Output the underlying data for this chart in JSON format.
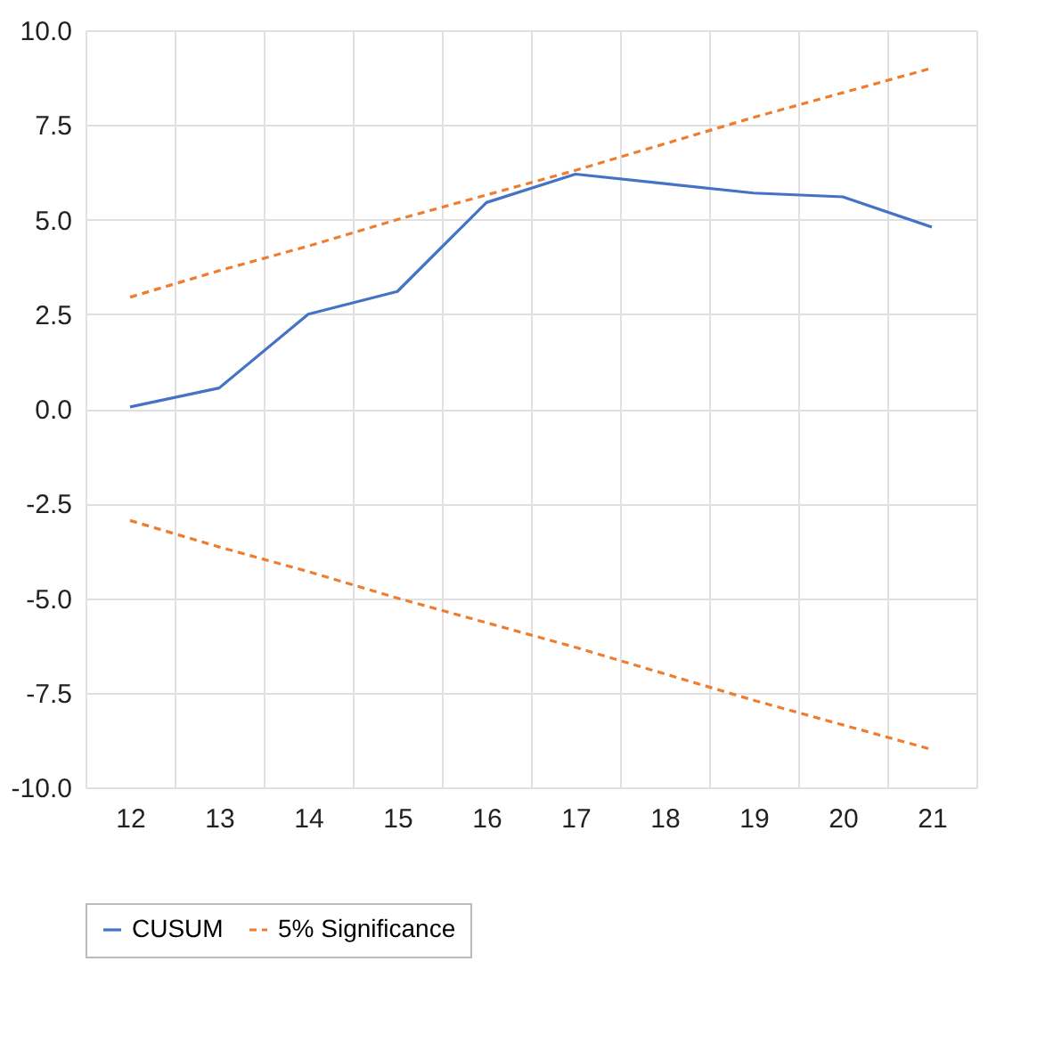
{
  "chart_data": {
    "type": "line",
    "categories": [
      "12",
      "13",
      "14",
      "15",
      "16",
      "17",
      "18",
      "19",
      "20",
      "21"
    ],
    "series": [
      {
        "name": "CUSUM",
        "color": "#4472c4",
        "line_style": "solid",
        "values": [
          0.05,
          0.55,
          2.5,
          3.1,
          5.45,
          6.2,
          5.95,
          5.7,
          5.6,
          4.8
        ]
      },
      {
        "name": "5% Significance",
        "color": "#ed7d31",
        "line_style": "dashed",
        "values": [
          2.95,
          3.65,
          4.3,
          5.0,
          5.65,
          6.3,
          7.0,
          7.7,
          8.35,
          9.0
        ]
      },
      {
        "color": "#ed7d31",
        "line_style": "dashed",
        "values": [
          -2.95,
          -3.65,
          -4.3,
          -5.0,
          -5.65,
          -6.3,
          -7.0,
          -7.7,
          -8.35,
          -9.0
        ]
      }
    ],
    "ylim": [
      -10,
      10
    ],
    "yticks": [
      {
        "value": -10,
        "label": "-10.0"
      },
      {
        "value": -7.5,
        "label": "-7.5"
      },
      {
        "value": -5,
        "label": "-5.0"
      },
      {
        "value": -2.5,
        "label": "-2.5"
      },
      {
        "value": 0,
        "label": "0.0"
      },
      {
        "value": 2.5,
        "label": "2.5"
      },
      {
        "value": 5,
        "label": "5.0"
      },
      {
        "value": 7.5,
        "label": "7.5"
      },
      {
        "value": 10,
        "label": "10.0"
      }
    ],
    "grid": true,
    "legend": "bottom",
    "marker": "none"
  }
}
